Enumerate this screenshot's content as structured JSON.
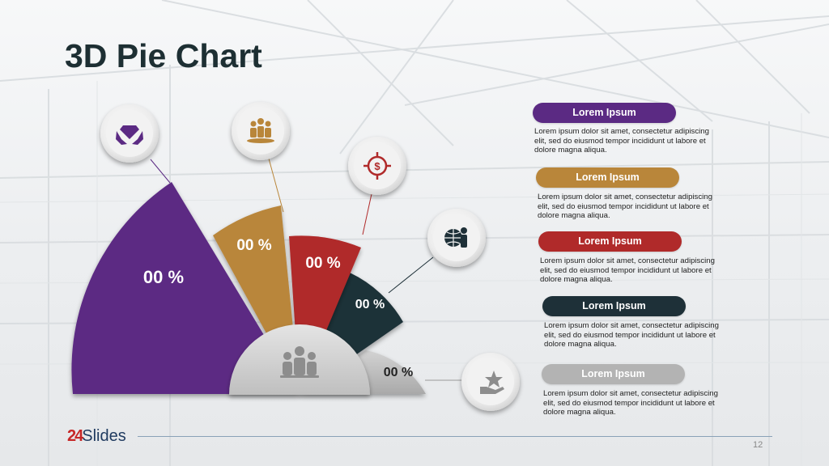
{
  "slide": {
    "title": "3D Pie Chart",
    "page_number": "12",
    "logo": {
      "prefix": "24",
      "text": "Slides"
    }
  },
  "colors": {
    "purple": "#5b2a83",
    "gold": "#b9863a",
    "red": "#b02a2a",
    "dark": "#1e3038",
    "gray": "#b3b3b3"
  },
  "segments": [
    {
      "label": "00 %",
      "color": "#5b2a83",
      "icon": "diamond-hands-icon"
    },
    {
      "label": "00 %",
      "color": "#b9863a",
      "icon": "team-icon"
    },
    {
      "label": "00 %",
      "color": "#b02a2a",
      "icon": "target-dollar-icon"
    },
    {
      "label": "00 %",
      "color": "#1e3038",
      "icon": "globe-person-icon"
    },
    {
      "label": "00 %",
      "color": "#b3b3b3",
      "icon": "hand-star-icon"
    }
  ],
  "center_icon": "people-group-icon",
  "legend": [
    {
      "title": "Lorem Ipsum",
      "color": "#5b2a83",
      "text": "Lorem ipsum dolor sit amet, consectetur adipiscing elit, sed do eiusmod tempor incididunt ut labore et dolore magna aliqua."
    },
    {
      "title": "Lorem Ipsum",
      "color": "#b9863a",
      "text": "Lorem ipsum dolor sit amet, consectetur adipiscing elit, sed do eiusmod tempor incididunt ut labore et dolore magna aliqua."
    },
    {
      "title": "Lorem Ipsum",
      "color": "#b02a2a",
      "text": "Lorem ipsum dolor sit amet, consectetur adipiscing elit, sed do eiusmod tempor incididunt ut labore et dolore magna aliqua."
    },
    {
      "title": "Lorem Ipsum",
      "color": "#1e3038",
      "text": "Lorem ipsum dolor sit amet, consectetur adipiscing elit, sed do eiusmod tempor incididunt ut labore et dolore magna aliqua."
    },
    {
      "title": "Lorem Ipsum",
      "color": "#b3b3b3",
      "text": "Lorem ipsum dolor sit amet, consectetur adipiscing elit, sed do eiusmod tempor incididunt ut labore et dolore magna aliqua."
    }
  ]
}
